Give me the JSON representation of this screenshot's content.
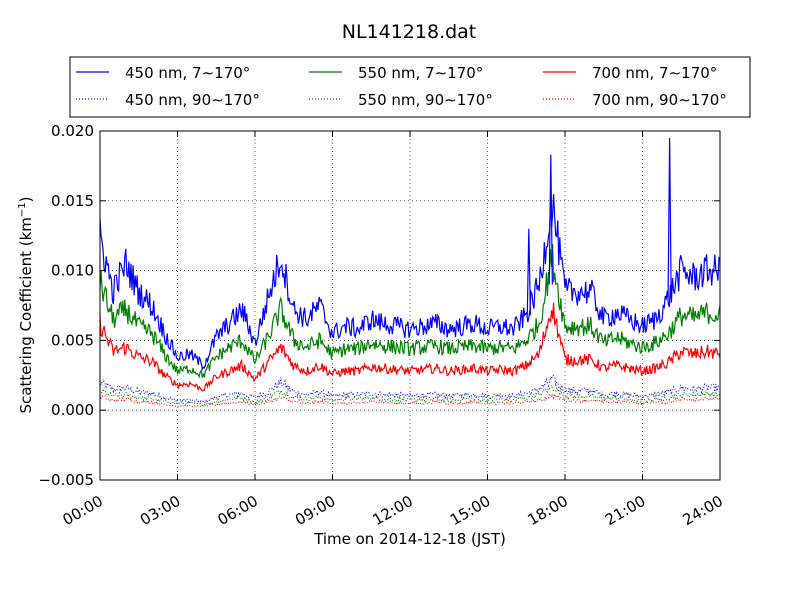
{
  "chart_data": {
    "type": "line",
    "title": "NL141218.dat",
    "xlabel": "Time on 2014-12-18 (JST)",
    "ylabel": "Scattering Coefficient (km",
    "ylabel_sup": "−1",
    "ylabel_close": ")",
    "xlim": [
      0,
      24
    ],
    "ylim": [
      -0.005,
      0.02
    ],
    "grid": true,
    "legend_position": "top (above plot, 3 columns)",
    "x_ticks": [
      0,
      3,
      6,
      9,
      12,
      15,
      18,
      21,
      24
    ],
    "x_tick_labels": [
      "00:00",
      "03:00",
      "06:00",
      "09:00",
      "12:00",
      "15:00",
      "18:00",
      "21:00",
      "24:00"
    ],
    "y_ticks": [
      -0.005,
      0.0,
      0.005,
      0.01,
      0.015,
      0.02
    ],
    "y_tick_labels": [
      "−0.005",
      "0.000",
      "0.005",
      "0.010",
      "0.015",
      "0.020"
    ],
    "x": [
      0.0,
      0.5,
      1.0,
      1.5,
      2.0,
      2.5,
      3.0,
      3.5,
      4.0,
      4.5,
      5.0,
      5.5,
      6.0,
      6.5,
      7.0,
      7.5,
      8.0,
      8.5,
      9.0,
      9.5,
      10.0,
      10.5,
      11.0,
      11.5,
      12.0,
      12.5,
      13.0,
      13.5,
      14.0,
      14.5,
      15.0,
      15.5,
      16.0,
      16.5,
      17.0,
      17.5,
      18.0,
      18.5,
      19.0,
      19.5,
      20.0,
      20.5,
      21.0,
      21.5,
      22.0,
      22.5,
      23.0,
      23.5,
      24.0
    ],
    "series": [
      {
        "name": "450 nm, 7∼170°",
        "style": "solid",
        "color": "#0000ff",
        "values": [
          0.0125,
          0.0085,
          0.0105,
          0.0085,
          0.0075,
          0.0055,
          0.0038,
          0.004,
          0.0032,
          0.0052,
          0.0062,
          0.0072,
          0.0048,
          0.008,
          0.011,
          0.0072,
          0.0065,
          0.0075,
          0.0055,
          0.006,
          0.0058,
          0.0065,
          0.0062,
          0.006,
          0.0058,
          0.006,
          0.0062,
          0.0058,
          0.006,
          0.0062,
          0.0058,
          0.006,
          0.0058,
          0.0068,
          0.009,
          0.015,
          0.0085,
          0.0085,
          0.0085,
          0.0065,
          0.007,
          0.0065,
          0.006,
          0.0065,
          0.008,
          0.01,
          0.0095,
          0.01,
          0.01
        ]
      },
      {
        "name": "550 nm, 7∼170°",
        "style": "solid",
        "color": "#008000",
        "values": [
          0.0092,
          0.0065,
          0.0072,
          0.006,
          0.0055,
          0.004,
          0.0028,
          0.003,
          0.0025,
          0.0038,
          0.0045,
          0.005,
          0.0035,
          0.0052,
          0.0072,
          0.005,
          0.0045,
          0.005,
          0.004,
          0.0044,
          0.0044,
          0.0048,
          0.0046,
          0.0045,
          0.0044,
          0.0045,
          0.0046,
          0.0044,
          0.0045,
          0.0046,
          0.0044,
          0.0045,
          0.0044,
          0.005,
          0.0062,
          0.011,
          0.006,
          0.006,
          0.006,
          0.0048,
          0.0052,
          0.0048,
          0.0045,
          0.0048,
          0.0055,
          0.0068,
          0.0066,
          0.007,
          0.0068
        ]
      },
      {
        "name": "700 nm, 7∼170°",
        "style": "solid",
        "color": "#ff0000",
        "values": [
          0.0062,
          0.0042,
          0.0045,
          0.0038,
          0.0035,
          0.0025,
          0.0018,
          0.0019,
          0.0015,
          0.0024,
          0.0028,
          0.0032,
          0.0022,
          0.0034,
          0.0045,
          0.0032,
          0.0028,
          0.0032,
          0.0026,
          0.0028,
          0.0028,
          0.0031,
          0.003,
          0.0029,
          0.0028,
          0.0029,
          0.003,
          0.0028,
          0.0029,
          0.003,
          0.0028,
          0.0029,
          0.0028,
          0.0032,
          0.004,
          0.0075,
          0.0036,
          0.0036,
          0.0036,
          0.003,
          0.0032,
          0.003,
          0.0028,
          0.003,
          0.0034,
          0.0042,
          0.004,
          0.0042,
          0.004
        ]
      },
      {
        "name": "450 nm, 90∼170°",
        "style": "dotted",
        "color": "#0000ff",
        "values": [
          0.002,
          0.0015,
          0.0016,
          0.0013,
          0.0012,
          0.0009,
          0.0007,
          0.0007,
          0.0006,
          0.0009,
          0.0011,
          0.0012,
          0.0009,
          0.0013,
          0.002,
          0.0013,
          0.0011,
          0.0013,
          0.001,
          0.0011,
          0.0011,
          0.0012,
          0.0011,
          0.0011,
          0.001,
          0.0011,
          0.0011,
          0.001,
          0.0011,
          0.0011,
          0.001,
          0.0011,
          0.001,
          0.0012,
          0.0015,
          0.0022,
          0.0014,
          0.0014,
          0.0014,
          0.0011,
          0.0012,
          0.0011,
          0.001,
          0.0011,
          0.0013,
          0.0016,
          0.0015,
          0.0016,
          0.0016
        ]
      },
      {
        "name": "550 nm, 90∼170°",
        "style": "dotted",
        "color": "#008000",
        "values": [
          0.0014,
          0.001,
          0.0011,
          0.0009,
          0.0008,
          0.0006,
          0.0005,
          0.0005,
          0.0004,
          0.0006,
          0.0008,
          0.0009,
          0.0006,
          0.0009,
          0.0014,
          0.0009,
          0.0008,
          0.0009,
          0.0007,
          0.0008,
          0.0008,
          0.0009,
          0.0008,
          0.0008,
          0.0007,
          0.0008,
          0.0008,
          0.0007,
          0.0008,
          0.0008,
          0.0007,
          0.0008,
          0.0007,
          0.0009,
          0.0011,
          0.0017,
          0.001,
          0.001,
          0.001,
          0.0008,
          0.0009,
          0.0008,
          0.0007,
          0.0008,
          0.0009,
          0.0011,
          0.0011,
          0.0012,
          0.0011
        ]
      },
      {
        "name": "700 nm, 90∼170°",
        "style": "dotted",
        "color": "#ff0000",
        "values": [
          0.001,
          0.0007,
          0.0008,
          0.0006,
          0.0006,
          0.0004,
          0.0003,
          0.0003,
          0.0003,
          0.0004,
          0.0005,
          0.0006,
          0.0004,
          0.0006,
          0.0009,
          0.0006,
          0.0005,
          0.0006,
          0.0005,
          0.0005,
          0.0005,
          0.0006,
          0.0006,
          0.0005,
          0.0005,
          0.0005,
          0.0006,
          0.0005,
          0.0005,
          0.0006,
          0.0005,
          0.0005,
          0.0005,
          0.0006,
          0.0007,
          0.0011,
          0.0007,
          0.0007,
          0.0007,
          0.0006,
          0.0006,
          0.0006,
          0.0005,
          0.0006,
          0.0006,
          0.0008,
          0.0008,
          0.0008,
          0.0008
        ]
      }
    ],
    "spikes": [
      {
        "series": "450 nm, 7∼170°",
        "x": 22.05,
        "y": 0.0195
      },
      {
        "series": "450 nm, 7∼170°",
        "x": 17.45,
        "y": 0.0183
      },
      {
        "series": "450 nm, 7∼170°",
        "x": 16.6,
        "y": 0.013
      }
    ],
    "legend_order": [
      0,
      1,
      2,
      3,
      4,
      5
    ]
  }
}
